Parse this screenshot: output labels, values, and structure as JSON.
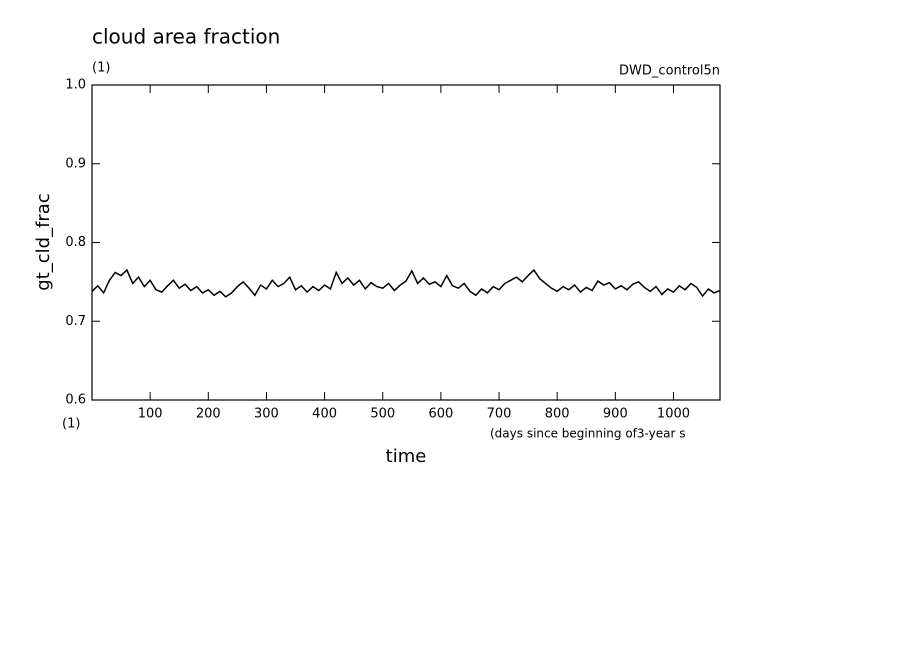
{
  "chart_data": {
    "type": "line",
    "title": "cloud area fraction",
    "units": "(1)",
    "run_label": "DWD_control5n",
    "y_label": "gt_cld_frac",
    "x_units": "(1)",
    "x_sublabel": "(days since beginning of3-year s",
    "x_label": "time",
    "x": [
      0,
      10,
      20,
      30,
      40,
      50,
      60,
      70,
      80,
      90,
      100,
      110,
      120,
      130,
      140,
      150,
      160,
      170,
      180,
      190,
      200,
      210,
      220,
      230,
      240,
      250,
      260,
      270,
      280,
      290,
      300,
      310,
      320,
      330,
      340,
      350,
      360,
      370,
      380,
      390,
      400,
      410,
      420,
      430,
      440,
      450,
      460,
      470,
      480,
      490,
      500,
      510,
      520,
      530,
      540,
      550,
      560,
      570,
      580,
      590,
      600,
      610,
      620,
      630,
      640,
      650,
      660,
      670,
      680,
      690,
      700,
      710,
      720,
      730,
      740,
      750,
      760,
      770,
      780,
      790,
      800,
      810,
      820,
      830,
      840,
      850,
      860,
      870,
      880,
      890,
      900,
      910,
      920,
      930,
      940,
      950,
      960,
      970,
      980,
      990,
      1000,
      1010,
      1020,
      1030,
      1040,
      1050,
      1060,
      1070,
      1080
    ],
    "series": [
      {
        "name": "gt_cld_frac",
        "color": "#000000",
        "values": [
          0.738,
          0.745,
          0.736,
          0.752,
          0.762,
          0.758,
          0.765,
          0.748,
          0.756,
          0.744,
          0.752,
          0.74,
          0.737,
          0.745,
          0.752,
          0.742,
          0.747,
          0.739,
          0.744,
          0.736,
          0.74,
          0.733,
          0.738,
          0.731,
          0.736,
          0.744,
          0.75,
          0.742,
          0.733,
          0.746,
          0.741,
          0.752,
          0.744,
          0.748,
          0.756,
          0.74,
          0.745,
          0.737,
          0.744,
          0.739,
          0.746,
          0.741,
          0.762,
          0.748,
          0.755,
          0.746,
          0.752,
          0.741,
          0.749,
          0.744,
          0.742,
          0.748,
          0.739,
          0.746,
          0.751,
          0.764,
          0.748,
          0.755,
          0.747,
          0.75,
          0.744,
          0.758,
          0.745,
          0.742,
          0.748,
          0.738,
          0.733,
          0.741,
          0.736,
          0.744,
          0.74,
          0.748,
          0.752,
          0.756,
          0.75,
          0.758,
          0.765,
          0.754,
          0.748,
          0.742,
          0.738,
          0.744,
          0.74,
          0.746,
          0.737,
          0.743,
          0.739,
          0.751,
          0.746,
          0.749,
          0.741,
          0.745,
          0.74,
          0.747,
          0.75,
          0.743,
          0.738,
          0.744,
          0.734,
          0.741,
          0.737,
          0.745,
          0.74,
          0.748,
          0.743,
          0.732,
          0.741,
          0.736,
          0.739
        ]
      }
    ],
    "xlim": [
      0,
      1080
    ],
    "xticks": [
      100,
      200,
      300,
      400,
      500,
      600,
      700,
      800,
      900,
      1000
    ],
    "ylim": [
      0.6,
      1.0
    ],
    "yticks": [
      0.6,
      0.7,
      0.8,
      0.9,
      {
        "value": 1.0,
        "label": "1.0"
      }
    ]
  }
}
